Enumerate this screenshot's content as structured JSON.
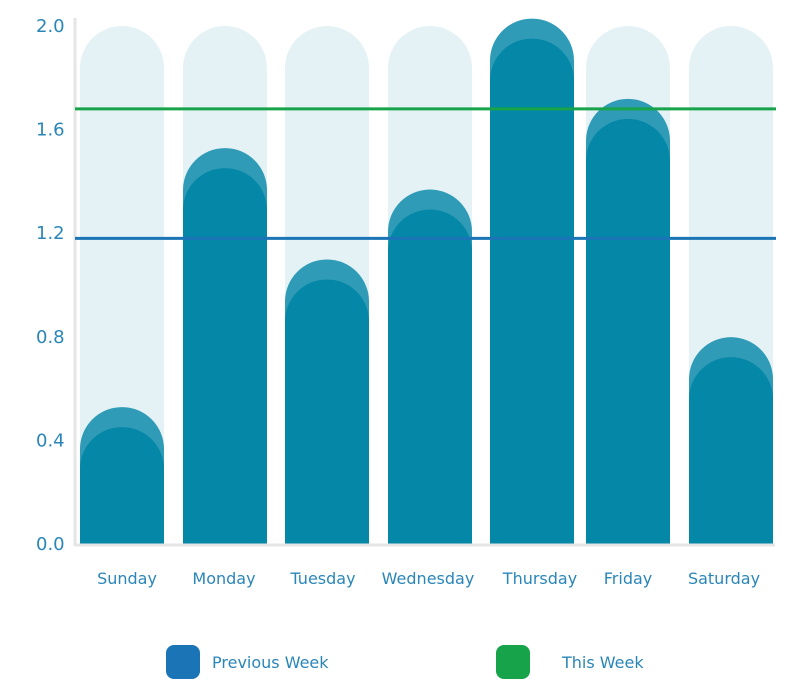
{
  "chart_data": {
    "type": "bar",
    "categories": [
      "Sunday",
      "Monday",
      "Tuesday",
      "Wednesday",
      "Thursday",
      "Friday",
      "Saturday"
    ],
    "values": [
      0.49,
      1.49,
      1.06,
      1.33,
      1.99,
      1.68,
      0.76
    ],
    "ylim": [
      0,
      2.0
    ],
    "yticks": [
      "0.0",
      "0.4",
      "0.8",
      "1.2",
      "1.6",
      "2.0"
    ],
    "reference_lines": [
      {
        "name": "Previous Week",
        "value": 1.18,
        "color": "#1a74b5"
      },
      {
        "name": "This Week",
        "value": 1.68,
        "color": "#16a34a"
      }
    ],
    "legend": [
      {
        "label": "Previous Week",
        "color": "#1a74b5"
      },
      {
        "label": "This Week",
        "color": "#16a34a"
      }
    ],
    "colors": {
      "bar": "#0587a8",
      "bar_cap": "#2f9bb6",
      "track": "#e4f2f5",
      "axis": "#e5e5e5",
      "tick_text": "#2a86b8"
    }
  }
}
